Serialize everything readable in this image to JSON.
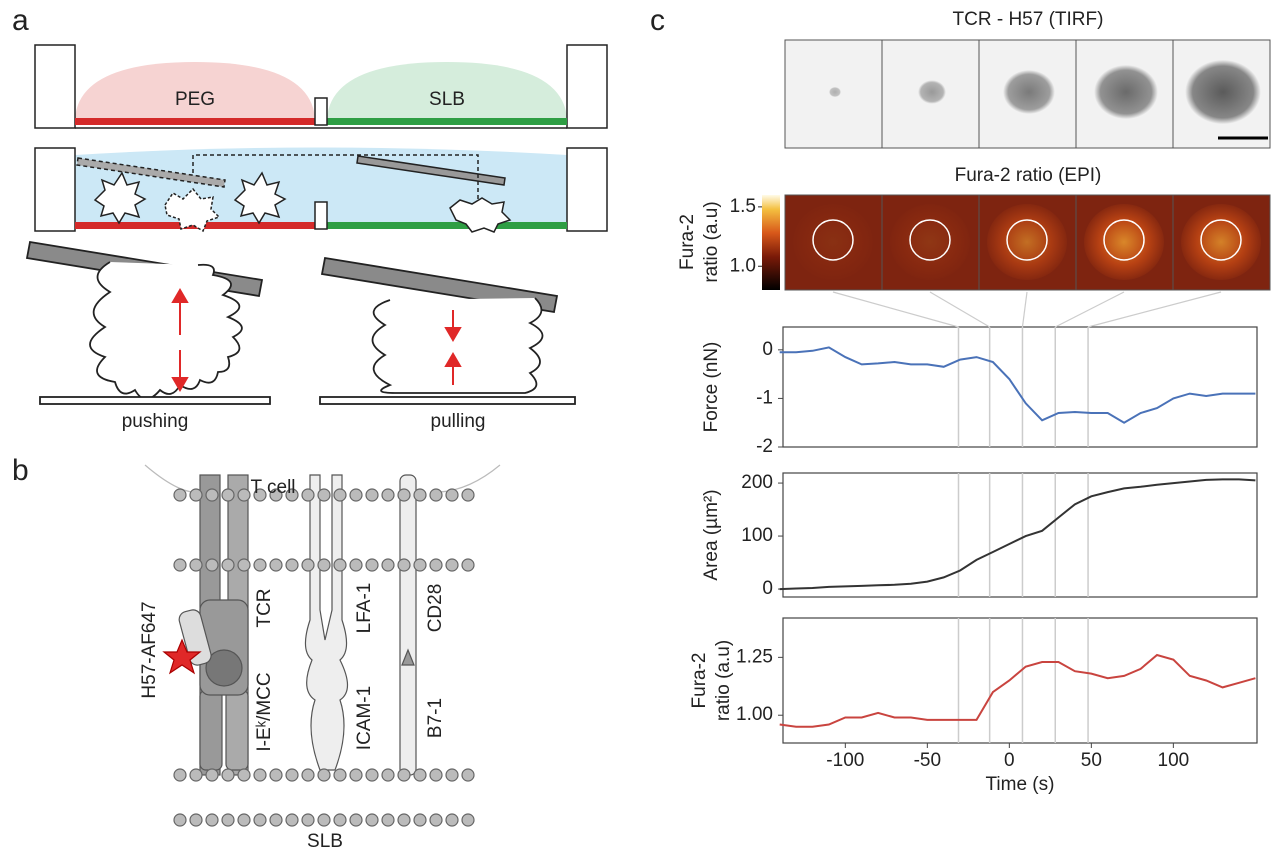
{
  "panel_a": {
    "label": "a",
    "peg": "PEG",
    "slb": "SLB",
    "pushing": "pushing",
    "pulling": "pulling"
  },
  "panel_b": {
    "label": "b",
    "t_cell": "T cell",
    "h57": "H57-AF647",
    "tcr": "TCR",
    "iek": "I-Eᵏ/MCC",
    "lfa": "LFA-1",
    "icam": "ICAM-1",
    "cd28": "CD28",
    "b7": "B7-1",
    "slb": "SLB"
  },
  "panel_c": {
    "label": "c",
    "tirf_title": "TCR - H57 (TIRF)",
    "fura_title": "Fura-2 ratio (EPI)",
    "colorbar_label": [
      "Fura-2",
      "ratio (a.u)"
    ],
    "colorbar_lim": [
      0.8,
      1.6
    ],
    "colorbar_ticks": [
      1.5,
      {
        "value": 1,
        "label": "1.0"
      }
    ],
    "frame_times": [
      -31,
      -12,
      8,
      28,
      48
    ]
  },
  "chart_data": [
    {
      "type": "line",
      "ylabel": [
        "Force (nN)"
      ],
      "color": "#4a72b8",
      "x": [
        -140,
        -130,
        -120,
        -110,
        -100,
        -90,
        -80,
        -70,
        -60,
        -50,
        -40,
        -30,
        -20,
        -10,
        0,
        10,
        20,
        30,
        40,
        50,
        60,
        70,
        80,
        90,
        100,
        110,
        120,
        130,
        140,
        150
      ],
      "values": [
        -0.05,
        -0.05,
        -0.02,
        0.05,
        -0.15,
        -0.3,
        -0.28,
        -0.25,
        -0.3,
        -0.3,
        -0.35,
        -0.2,
        -0.15,
        -0.25,
        -0.6,
        -1.1,
        -1.45,
        -1.3,
        -1.28,
        -1.3,
        -1.3,
        -1.5,
        -1.3,
        -1.2,
        -1.0,
        -0.9,
        -0.95,
        -0.9,
        -0.9,
        -0.9
      ],
      "xlim": [
        -138,
        151
      ],
      "ylim": [
        -2,
        0.47
      ],
      "yticks": [
        0,
        -1,
        -2
      ]
    },
    {
      "type": "line",
      "ylabel": [
        "Area (µm²)"
      ],
      "color": "#333333",
      "x": [
        -140,
        -130,
        -120,
        -110,
        -100,
        -90,
        -80,
        -70,
        -60,
        -50,
        -40,
        -30,
        -20,
        -10,
        0,
        10,
        20,
        30,
        40,
        50,
        60,
        70,
        80,
        90,
        100,
        110,
        120,
        130,
        140,
        150
      ],
      "values": [
        0,
        1,
        2,
        4,
        5,
        6,
        7,
        8,
        10,
        14,
        22,
        35,
        55,
        70,
        85,
        100,
        110,
        135,
        160,
        175,
        183,
        190,
        193,
        197,
        200,
        203,
        206,
        207,
        207,
        205
      ],
      "xlim": [
        -138,
        151
      ],
      "ylim": [
        -15,
        219
      ],
      "yticks": [
        0,
        100,
        200
      ]
    },
    {
      "type": "line",
      "ylabel": [
        "Fura-2",
        "ratio (a.u)"
      ],
      "xlabel": "Time (s)",
      "color": "#c9443f",
      "x": [
        -140,
        -130,
        -120,
        -110,
        -100,
        -90,
        -80,
        -70,
        -60,
        -50,
        -40,
        -30,
        -20,
        -10,
        0,
        10,
        20,
        30,
        40,
        50,
        60,
        70,
        80,
        90,
        100,
        110,
        120,
        130,
        140,
        150
      ],
      "values": [
        0.96,
        0.95,
        0.95,
        0.96,
        0.99,
        0.99,
        1.01,
        0.99,
        0.99,
        0.98,
        0.98,
        0.98,
        0.98,
        1.1,
        1.15,
        1.21,
        1.23,
        1.23,
        1.19,
        1.18,
        1.16,
        1.17,
        1.2,
        1.26,
        1.24,
        1.17,
        1.15,
        1.12,
        1.14,
        1.16
      ],
      "xlim": [
        -138,
        151
      ],
      "ylim": [
        0.88,
        1.42
      ],
      "yticks": [
        {
          "value": 1,
          "label": "1.00"
        },
        {
          "value": 1.25,
          "label": "1.25"
        }
      ],
      "xticks": [
        -100,
        -50,
        0,
        50,
        100
      ]
    }
  ]
}
